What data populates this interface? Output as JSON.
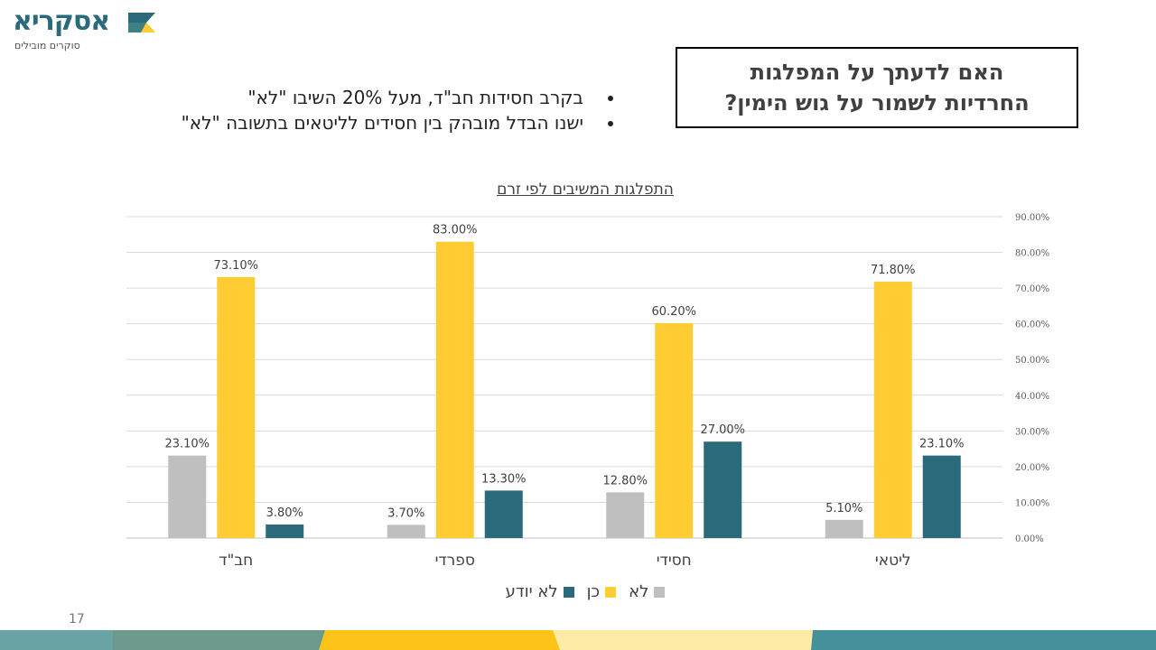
{
  "logo": {
    "name": "אסקריא",
    "tagline": "סוקרים מובילים"
  },
  "slide": {
    "title_line1": "האם לדעתך על המפלגות",
    "title_line2": "החרדיות לשמור על גוש הימין?",
    "bullets": [
      "בקרב חסידות חב\"ד, מעל 20% השיבו \"לא\"",
      "ישנו הבדל מובהק בין חסידים לליטאים בתשובה \"לא\""
    ],
    "page_number": "17"
  },
  "chart_data": {
    "type": "bar",
    "title": "התפלגות המשיבים לפי זרם",
    "categories": [
      "חב\"ד",
      "ספרדי",
      "חסידי",
      "ליטאי"
    ],
    "series": [
      {
        "name": "לא",
        "color": "#bfbfbf",
        "values": [
          23.1,
          3.7,
          12.8,
          5.1
        ]
      },
      {
        "name": "כן",
        "color": "#ffcd33",
        "values": [
          73.1,
          83.0,
          60.2,
          71.8
        ]
      },
      {
        "name": "לא יודע",
        "color": "#2a6a7a",
        "values": [
          3.8,
          13.3,
          27.0,
          23.1
        ]
      }
    ],
    "data_labels": [
      [
        "23.10%",
        "3.70%",
        "12.80%",
        "5.10%"
      ],
      [
        "73.10%",
        "83.00%",
        "60.20%",
        "71.80%"
      ],
      [
        "3.80%",
        "13.30%",
        "27.00%",
        "23.10%"
      ]
    ],
    "y_ticks": [
      "0.00%",
      "10.00%",
      "20.00%",
      "30.00%",
      "40.00%",
      "50.00%",
      "60.00%",
      "70.00%",
      "80.00%",
      "90.00%"
    ],
    "ylim": [
      0,
      90
    ],
    "y_axis_side": "right",
    "grid": true,
    "legend_position": "bottom"
  }
}
